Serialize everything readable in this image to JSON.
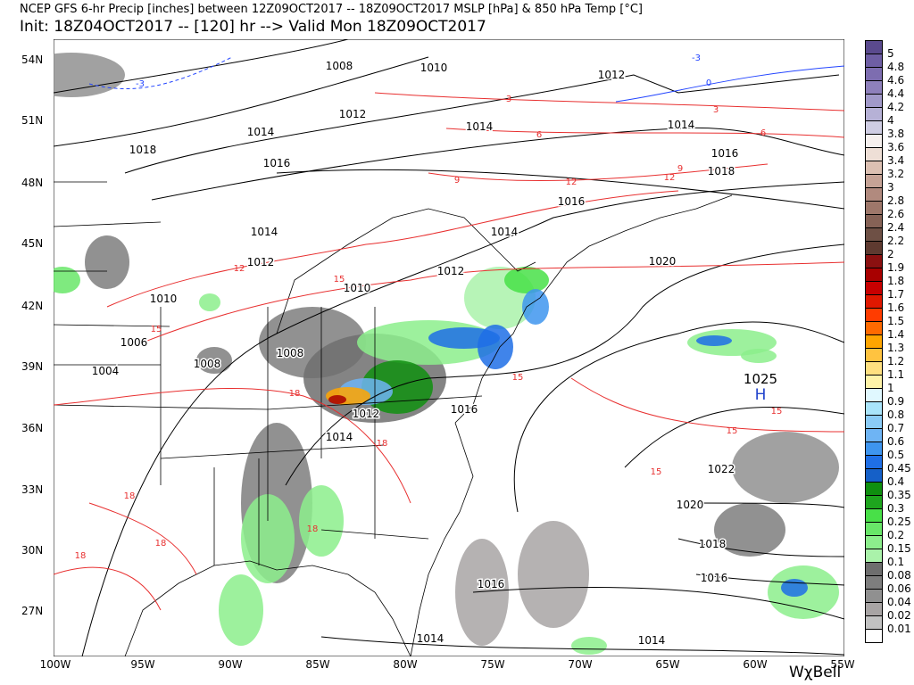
{
  "header": {
    "line1": "NCEP GFS 6-hr Precip [inches] between 12Z09OCT2017 -- 18Z09OCT2017 MSLP [hPa] & 850 hPa Temp [°C]",
    "line2": "Init: 18Z04OCT2017 -- [120] hr --> Valid Mon 18Z09OCT2017"
  },
  "axes": {
    "lat_labels": [
      "54N",
      "51N",
      "48N",
      "45N",
      "42N",
      "39N",
      "36N",
      "33N",
      "30N",
      "27N"
    ],
    "lon_labels": [
      "100W",
      "95W",
      "90W",
      "85W",
      "80W",
      "75W",
      "70W",
      "65W",
      "60W",
      "55W"
    ]
  },
  "colorbar": {
    "labels": [
      "5",
      "4.8",
      "4.6",
      "4.4",
      "4.2",
      "4",
      "3.8",
      "3.6",
      "3.4",
      "3.2",
      "3",
      "2.8",
      "2.6",
      "2.4",
      "2.2",
      "2",
      "1.9",
      "1.8",
      "1.7",
      "1.6",
      "1.5",
      "1.4",
      "1.3",
      "1.2",
      "1.1",
      "1",
      "0.9",
      "0.8",
      "0.7",
      "0.6",
      "0.5",
      "0.45",
      "0.4",
      "0.35",
      "0.3",
      "0.25",
      "0.2",
      "0.15",
      "0.1",
      "0.08",
      "0.06",
      "0.04",
      "0.02",
      "0.01"
    ],
    "colors": [
      "#5a4a8e",
      "#6e5ea4",
      "#7d6db0",
      "#8e80bb",
      "#a199c9",
      "#b6b1d6",
      "#cfcde3",
      "#f6f0ee",
      "#eedfd6",
      "#dcc0b2",
      "#c6a396",
      "#b18a7e",
      "#9e776a",
      "#866256",
      "#6e5045",
      "#5e3a30",
      "#8b1010",
      "#a80000",
      "#c80000",
      "#e01800",
      "#ff3c00",
      "#ff6a00",
      "#ffa500",
      "#ffc340",
      "#ffe080",
      "#fff3a8",
      "#e0f8ff",
      "#a9e4fb",
      "#8acbf7",
      "#6eb4f4",
      "#3e95ef",
      "#1f6fe6",
      "#1560c8",
      "#0f8f0f",
      "#1ea51e",
      "#48e048",
      "#68e668",
      "#8cee8c",
      "#aaf2aa",
      "#6e6e6e",
      "#7e7e7e",
      "#909090",
      "#a8a4a4",
      "#c2c2c2",
      "#ffffff"
    ]
  },
  "high_center": {
    "value": "1025",
    "label": "H"
  },
  "isobar_labels": [
    "1008",
    "1010",
    "1012",
    "1012",
    "1014",
    "1014",
    "1014",
    "1016",
    "1018",
    "1016",
    "1018",
    "1016",
    "1014",
    "1014",
    "1012",
    "1020",
    "1012",
    "1010",
    "1010",
    "1006",
    "1008",
    "1008",
    "1004",
    "1016",
    "1012",
    "1014",
    "1022",
    "1020",
    "1018",
    "1016",
    "1016",
    "1014",
    "1014"
  ],
  "isotherm_labels": [
    "3",
    "3",
    "6",
    "6",
    "9",
    "9",
    "12",
    "12",
    "12",
    "15",
    "15",
    "18",
    "18",
    "15",
    "15",
    "15",
    "15",
    "18",
    "18",
    "18",
    "18"
  ],
  "cold_isotherm_labels": [
    "-3",
    "-3",
    "0"
  ],
  "logo": "WχBell"
}
